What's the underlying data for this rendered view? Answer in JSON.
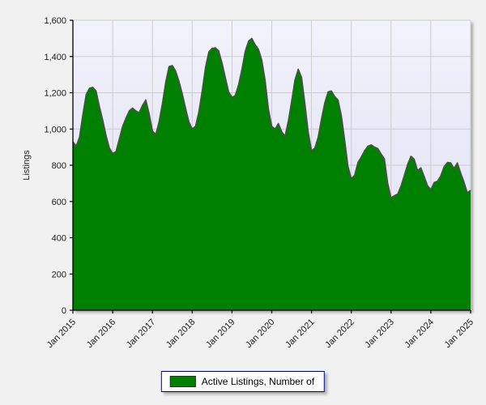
{
  "page": {
    "background_color": "#f1f1f1"
  },
  "chart_data": {
    "type": "area",
    "title": "",
    "xlabel": "",
    "ylabel": "Listings",
    "ylim": [
      0,
      1600
    ],
    "grid": true,
    "x_ticks": [
      "Jan 2015",
      "Jan 2016",
      "Jan 2017",
      "Jan 2018",
      "Jan 2019",
      "Jan 2020",
      "Jan 2021",
      "Jan 2022",
      "Jan 2023",
      "Jan 2024",
      "Jan 2025"
    ],
    "y_ticks": [
      0,
      200,
      400,
      600,
      800,
      1000,
      1200,
      1400,
      1600
    ],
    "y_tick_labels": [
      "0",
      "200",
      "400",
      "600",
      "800",
      "1,000",
      "1,200",
      "1,400",
      "1,600"
    ],
    "legend": {
      "label": "Active Listings, Number of",
      "position": "bottom-center"
    },
    "series": [
      {
        "name": "Active Listings, Number of",
        "start": "Jan 2015",
        "end": "Jan 2025",
        "interval": "monthly",
        "values": [
          930,
          905,
          955,
          1080,
          1190,
          1225,
          1230,
          1210,
          1125,
          1050,
          965,
          895,
          865,
          875,
          945,
          1015,
          1060,
          1100,
          1115,
          1100,
          1090,
          1130,
          1160,
          1085,
          990,
          970,
          1040,
          1140,
          1260,
          1345,
          1350,
          1320,
          1265,
          1195,
          1115,
          1040,
          1000,
          1015,
          1095,
          1210,
          1340,
          1425,
          1445,
          1448,
          1430,
          1365,
          1285,
          1205,
          1175,
          1185,
          1245,
          1330,
          1430,
          1485,
          1500,
          1465,
          1440,
          1380,
          1270,
          1110,
          1015,
          1000,
          1030,
          985,
          960,
          1045,
          1155,
          1270,
          1330,
          1285,
          1140,
          985,
          880,
          895,
          955,
          1055,
          1145,
          1205,
          1210,
          1180,
          1160,
          1075,
          940,
          795,
          725,
          745,
          815,
          845,
          880,
          905,
          912,
          900,
          892,
          862,
          835,
          700,
          620,
          632,
          642,
          685,
          745,
          805,
          850,
          833,
          770,
          786,
          738,
          688,
          665,
          705,
          712,
          742,
          792,
          815,
          813,
          782,
          813,
          758,
          708,
          648,
          662
        ]
      }
    ],
    "colors": {
      "fill": "#008000",
      "line": "#4d4d4d",
      "plot_background": "#e6e6f5",
      "grid": "#cccccc",
      "axis": "#000000",
      "tick_text": "#1a1a1a",
      "legend_border": "#000080"
    }
  }
}
